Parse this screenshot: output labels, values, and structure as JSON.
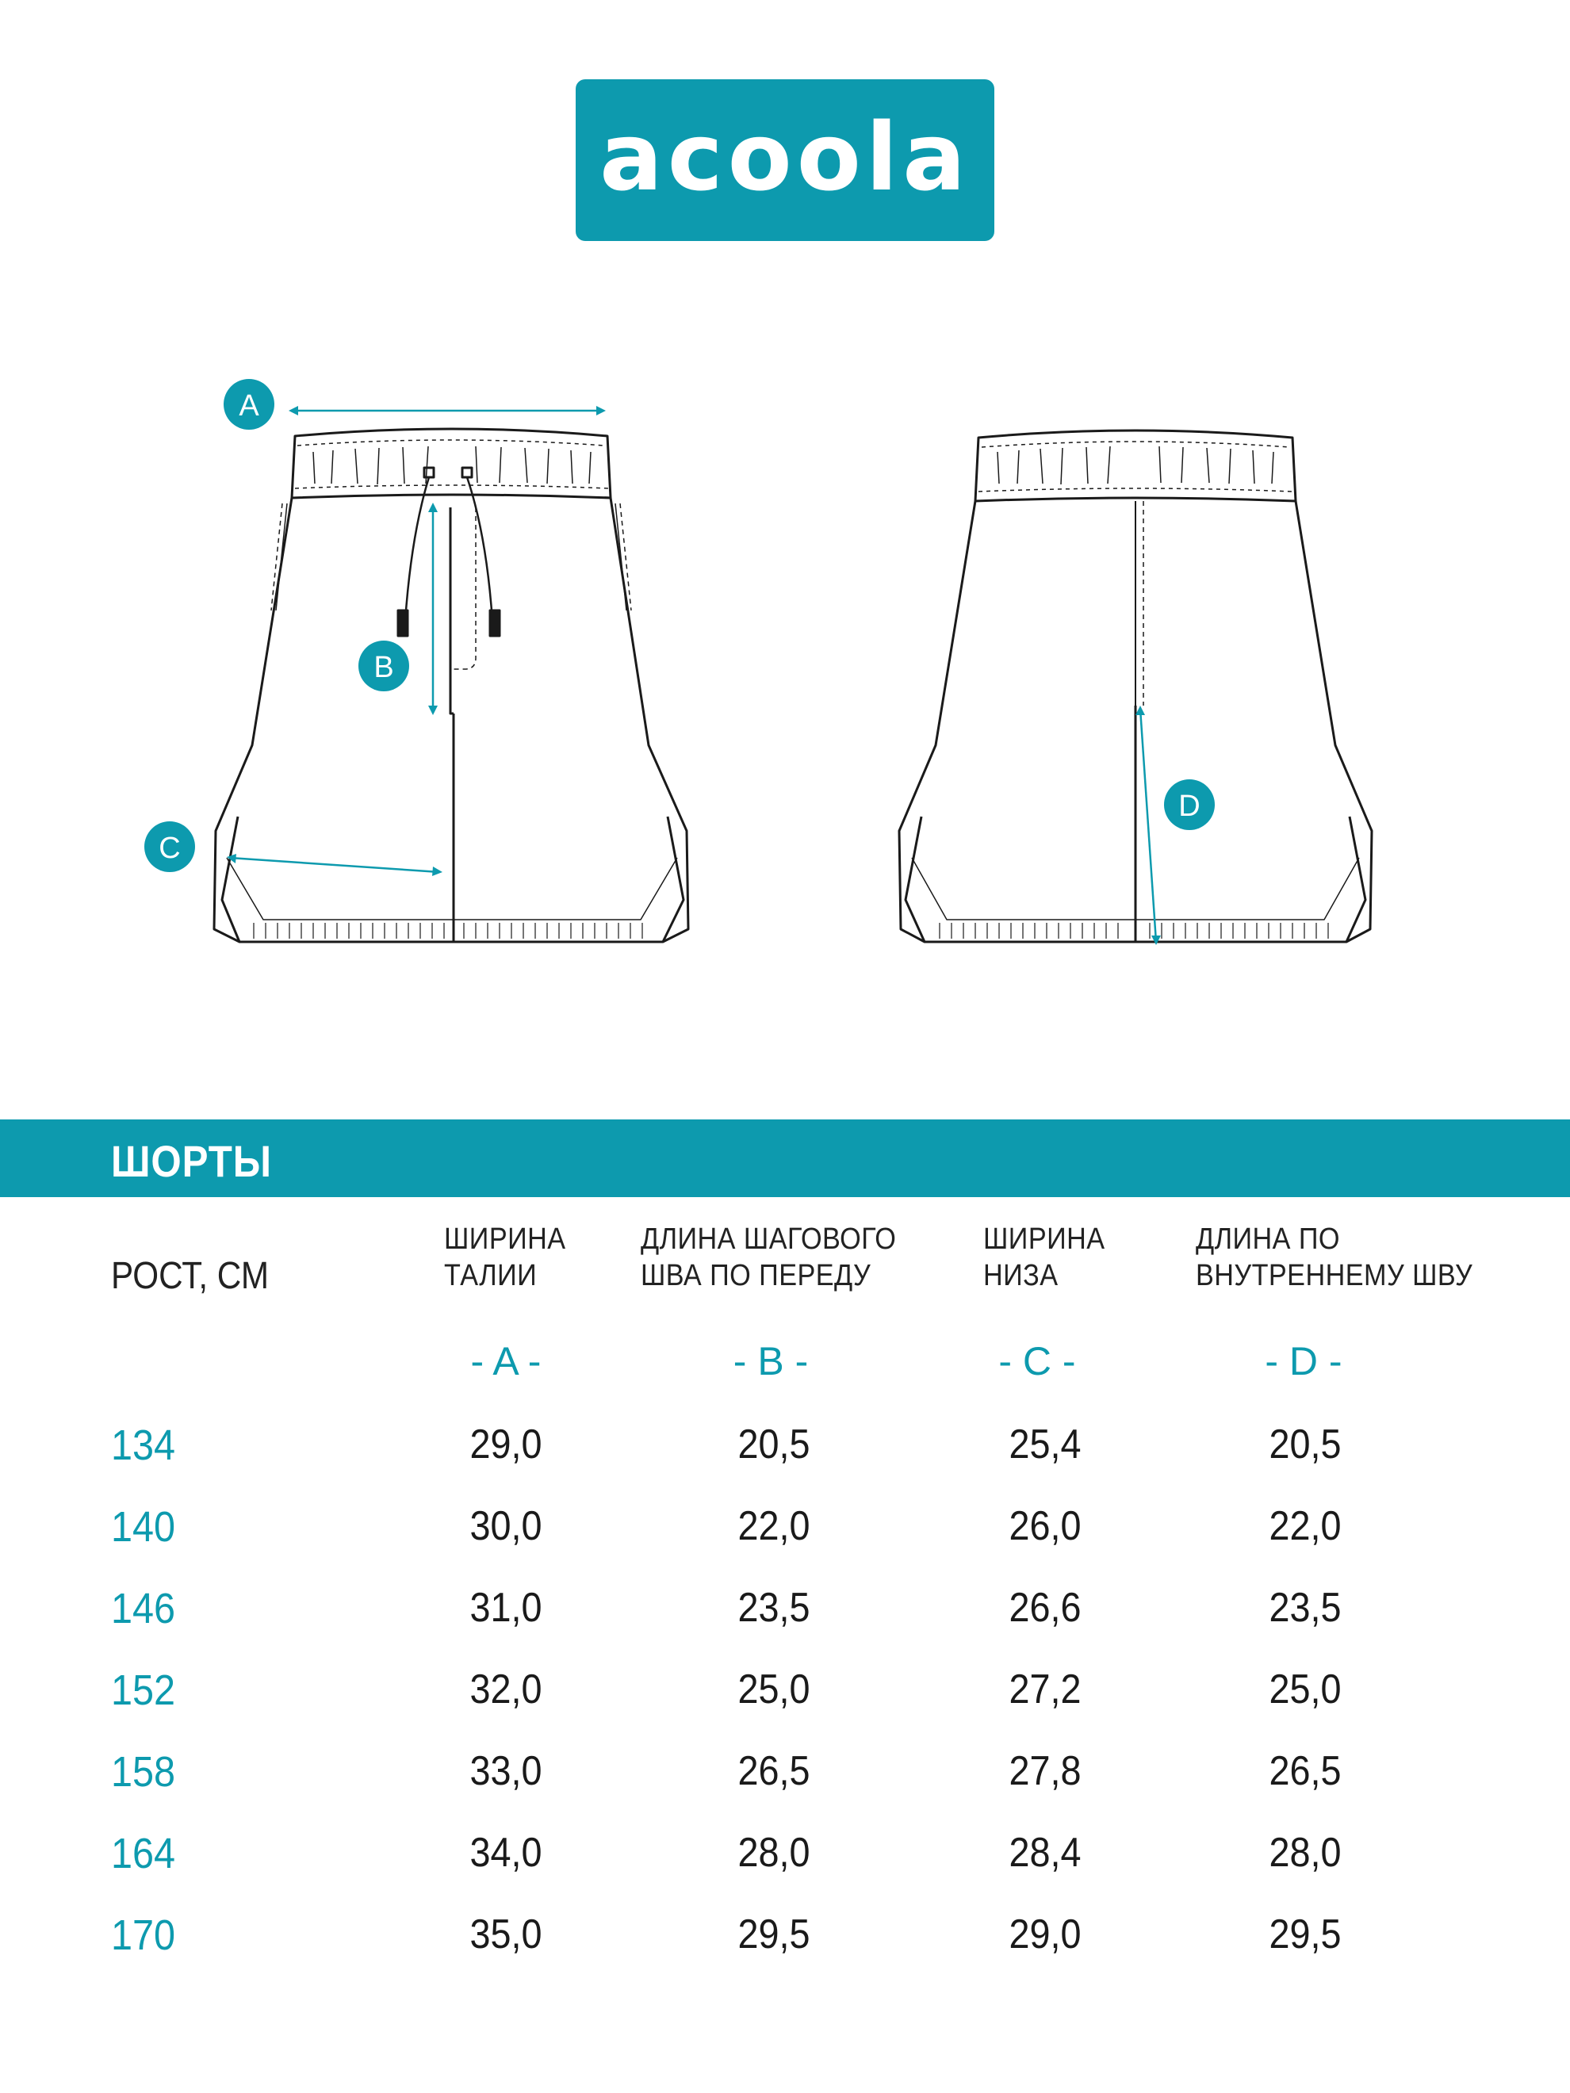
{
  "brand": {
    "logo_text": "acoola",
    "color": "#0d9aae"
  },
  "diagram": {
    "markers": [
      "A",
      "B",
      "C",
      "D"
    ]
  },
  "table": {
    "title": "ШОРТЫ",
    "row_header": "РОСТ, СМ",
    "columns": [
      {
        "line1": "ШИРИНА",
        "line2": "ТАЛИИ",
        "letter": "- A -"
      },
      {
        "line1": "ДЛИНА ШАГОВОГО",
        "line2": "ШВА ПО ПЕРЕДУ",
        "letter": "- B -"
      },
      {
        "line1": "ШИРИНА",
        "line2": "НИЗА",
        "letter": "- C -"
      },
      {
        "line1": "ДЛИНА ПО",
        "line2": "ВНУТРЕННЕМУ ШВУ",
        "letter": "- D -"
      }
    ],
    "rows": [
      {
        "height": "134",
        "values": [
          "29,0",
          "20,5",
          "25,4",
          "20,5"
        ]
      },
      {
        "height": "140",
        "values": [
          "30,0",
          "22,0",
          "26,0",
          "22,0"
        ]
      },
      {
        "height": "146",
        "values": [
          "31,0",
          "23,5",
          "26,6",
          "23,5"
        ]
      },
      {
        "height": "152",
        "values": [
          "32,0",
          "25,0",
          "27,2",
          "25,0"
        ]
      },
      {
        "height": "158",
        "values": [
          "33,0",
          "26,5",
          "27,8",
          "26,5"
        ]
      },
      {
        "height": "164",
        "values": [
          "34,0",
          "28,0",
          "28,4",
          "28,0"
        ]
      },
      {
        "height": "170",
        "values": [
          "35,0",
          "29,5",
          "29,0",
          "29,5"
        ]
      }
    ]
  }
}
